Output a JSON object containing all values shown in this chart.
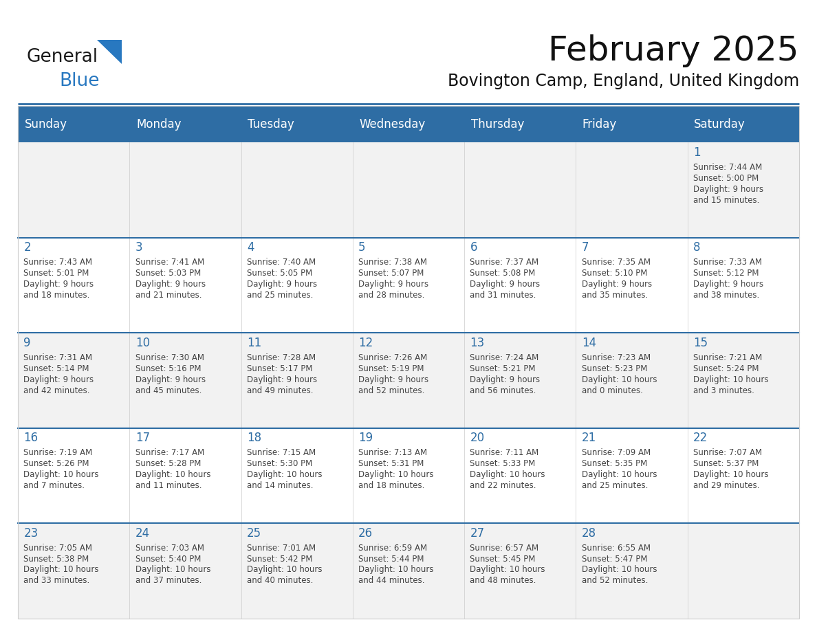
{
  "title": "February 2025",
  "subtitle": "Bovington Camp, England, United Kingdom",
  "header_bg": "#2E6DA4",
  "header_text_color": "#FFFFFF",
  "day_names": [
    "Sunday",
    "Monday",
    "Tuesday",
    "Wednesday",
    "Thursday",
    "Friday",
    "Saturday"
  ],
  "title_fontsize": 36,
  "subtitle_fontsize": 17,
  "header_fontsize": 12,
  "cell_number_fontsize": 12,
  "cell_text_fontsize": 8.5,
  "background_color": "#FFFFFF",
  "cell_bg_week0": "#F2F2F2",
  "cell_bg_week1": "#FFFFFF",
  "cell_bg_week2": "#F2F2F2",
  "cell_bg_week3": "#FFFFFF",
  "cell_bg_week4": "#F2F2F2",
  "cell_border_color": "#CCCCCC",
  "week_divider_color": "#2E6DA4",
  "number_color": "#2E6DA4",
  "text_color": "#444444",
  "logo_general_color": "#1a1a1a",
  "logo_blue_color": "#2878c0",
  "logo_triangle_color": "#2878c0",
  "weeks": [
    {
      "days": [
        {
          "day": null,
          "col": 0
        },
        {
          "day": null,
          "col": 1
        },
        {
          "day": null,
          "col": 2
        },
        {
          "day": null,
          "col": 3
        },
        {
          "day": null,
          "col": 4
        },
        {
          "day": null,
          "col": 5
        },
        {
          "day": 1,
          "col": 6,
          "sunrise": "7:44 AM",
          "sunset": "5:00 PM",
          "daylight_hours": 9,
          "daylight_minutes": 15
        }
      ]
    },
    {
      "days": [
        {
          "day": 2,
          "col": 0,
          "sunrise": "7:43 AM",
          "sunset": "5:01 PM",
          "daylight_hours": 9,
          "daylight_minutes": 18
        },
        {
          "day": 3,
          "col": 1,
          "sunrise": "7:41 AM",
          "sunset": "5:03 PM",
          "daylight_hours": 9,
          "daylight_minutes": 21
        },
        {
          "day": 4,
          "col": 2,
          "sunrise": "7:40 AM",
          "sunset": "5:05 PM",
          "daylight_hours": 9,
          "daylight_minutes": 25
        },
        {
          "day": 5,
          "col": 3,
          "sunrise": "7:38 AM",
          "sunset": "5:07 PM",
          "daylight_hours": 9,
          "daylight_minutes": 28
        },
        {
          "day": 6,
          "col": 4,
          "sunrise": "7:37 AM",
          "sunset": "5:08 PM",
          "daylight_hours": 9,
          "daylight_minutes": 31
        },
        {
          "day": 7,
          "col": 5,
          "sunrise": "7:35 AM",
          "sunset": "5:10 PM",
          "daylight_hours": 9,
          "daylight_minutes": 35
        },
        {
          "day": 8,
          "col": 6,
          "sunrise": "7:33 AM",
          "sunset": "5:12 PM",
          "daylight_hours": 9,
          "daylight_minutes": 38
        }
      ]
    },
    {
      "days": [
        {
          "day": 9,
          "col": 0,
          "sunrise": "7:31 AM",
          "sunset": "5:14 PM",
          "daylight_hours": 9,
          "daylight_minutes": 42
        },
        {
          "day": 10,
          "col": 1,
          "sunrise": "7:30 AM",
          "sunset": "5:16 PM",
          "daylight_hours": 9,
          "daylight_minutes": 45
        },
        {
          "day": 11,
          "col": 2,
          "sunrise": "7:28 AM",
          "sunset": "5:17 PM",
          "daylight_hours": 9,
          "daylight_minutes": 49
        },
        {
          "day": 12,
          "col": 3,
          "sunrise": "7:26 AM",
          "sunset": "5:19 PM",
          "daylight_hours": 9,
          "daylight_minutes": 52
        },
        {
          "day": 13,
          "col": 4,
          "sunrise": "7:24 AM",
          "sunset": "5:21 PM",
          "daylight_hours": 9,
          "daylight_minutes": 56
        },
        {
          "day": 14,
          "col": 5,
          "sunrise": "7:23 AM",
          "sunset": "5:23 PM",
          "daylight_hours": 10,
          "daylight_minutes": 0
        },
        {
          "day": 15,
          "col": 6,
          "sunrise": "7:21 AM",
          "sunset": "5:24 PM",
          "daylight_hours": 10,
          "daylight_minutes": 3
        }
      ]
    },
    {
      "days": [
        {
          "day": 16,
          "col": 0,
          "sunrise": "7:19 AM",
          "sunset": "5:26 PM",
          "daylight_hours": 10,
          "daylight_minutes": 7
        },
        {
          "day": 17,
          "col": 1,
          "sunrise": "7:17 AM",
          "sunset": "5:28 PM",
          "daylight_hours": 10,
          "daylight_minutes": 11
        },
        {
          "day": 18,
          "col": 2,
          "sunrise": "7:15 AM",
          "sunset": "5:30 PM",
          "daylight_hours": 10,
          "daylight_minutes": 14
        },
        {
          "day": 19,
          "col": 3,
          "sunrise": "7:13 AM",
          "sunset": "5:31 PM",
          "daylight_hours": 10,
          "daylight_minutes": 18
        },
        {
          "day": 20,
          "col": 4,
          "sunrise": "7:11 AM",
          "sunset": "5:33 PM",
          "daylight_hours": 10,
          "daylight_minutes": 22
        },
        {
          "day": 21,
          "col": 5,
          "sunrise": "7:09 AM",
          "sunset": "5:35 PM",
          "daylight_hours": 10,
          "daylight_minutes": 25
        },
        {
          "day": 22,
          "col": 6,
          "sunrise": "7:07 AM",
          "sunset": "5:37 PM",
          "daylight_hours": 10,
          "daylight_minutes": 29
        }
      ]
    },
    {
      "days": [
        {
          "day": 23,
          "col": 0,
          "sunrise": "7:05 AM",
          "sunset": "5:38 PM",
          "daylight_hours": 10,
          "daylight_minutes": 33
        },
        {
          "day": 24,
          "col": 1,
          "sunrise": "7:03 AM",
          "sunset": "5:40 PM",
          "daylight_hours": 10,
          "daylight_minutes": 37
        },
        {
          "day": 25,
          "col": 2,
          "sunrise": "7:01 AM",
          "sunset": "5:42 PM",
          "daylight_hours": 10,
          "daylight_minutes": 40
        },
        {
          "day": 26,
          "col": 3,
          "sunrise": "6:59 AM",
          "sunset": "5:44 PM",
          "daylight_hours": 10,
          "daylight_minutes": 44
        },
        {
          "day": 27,
          "col": 4,
          "sunrise": "6:57 AM",
          "sunset": "5:45 PM",
          "daylight_hours": 10,
          "daylight_minutes": 48
        },
        {
          "day": 28,
          "col": 5,
          "sunrise": "6:55 AM",
          "sunset": "5:47 PM",
          "daylight_hours": 10,
          "daylight_minutes": 52
        },
        {
          "day": null,
          "col": 6
        }
      ]
    }
  ]
}
